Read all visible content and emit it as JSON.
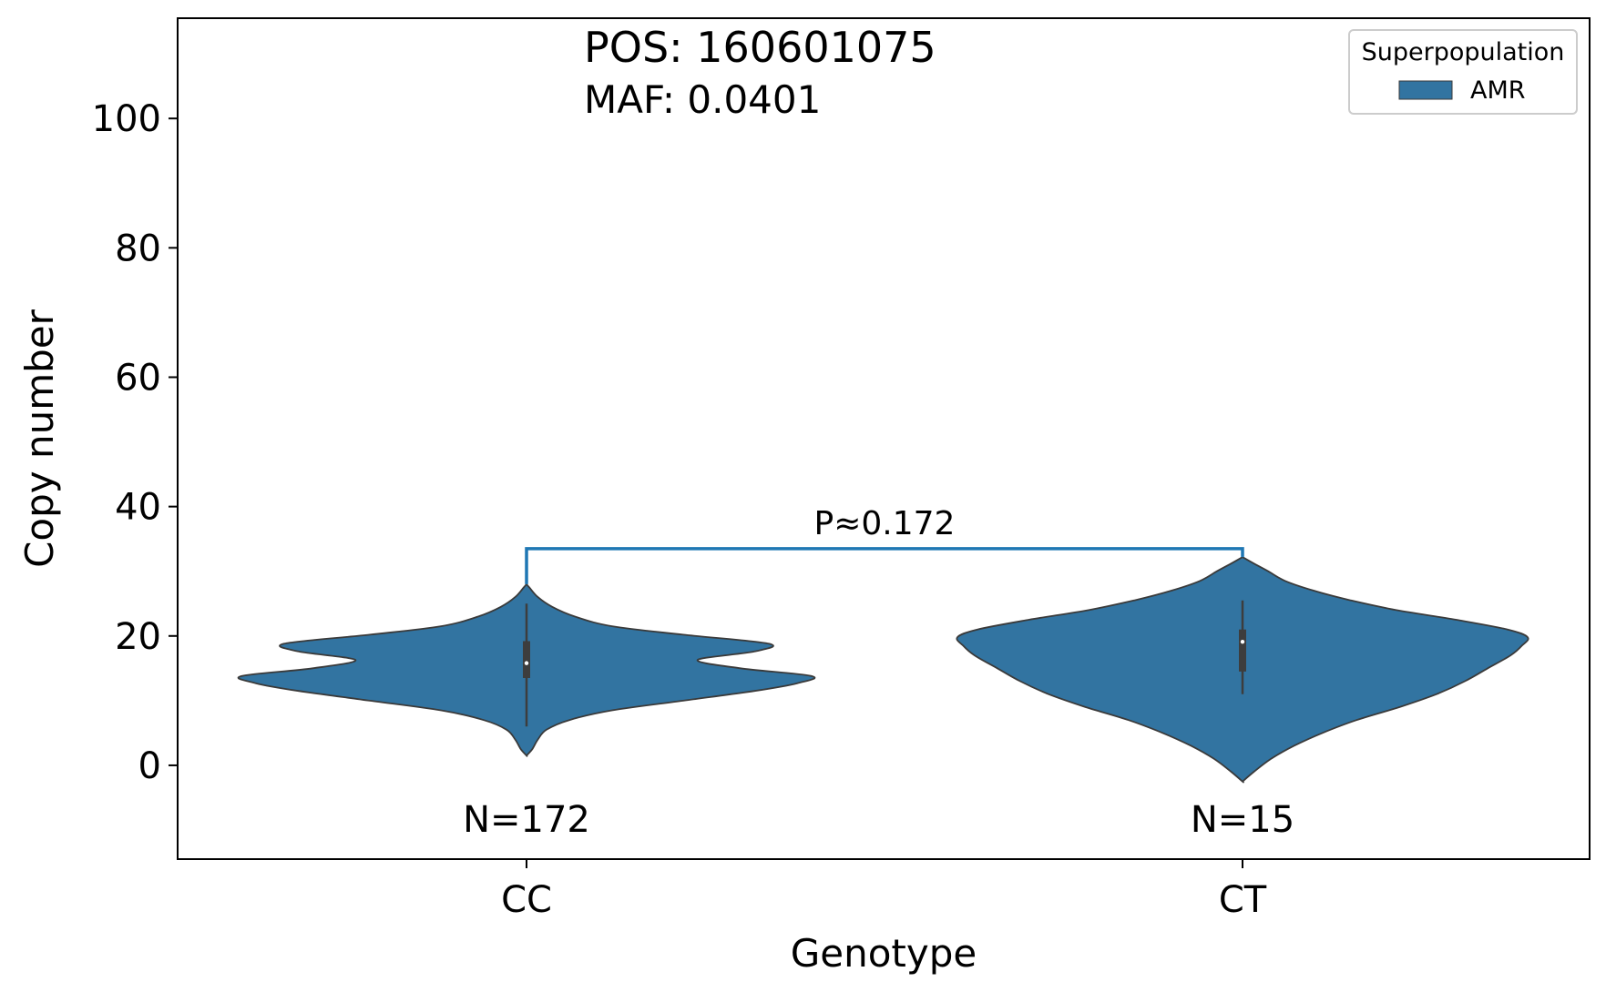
{
  "chart_data": {
    "type": "violin",
    "xlabel": "Genotype",
    "ylabel": "Copy number",
    "ylim": [
      -14.5,
      115.5
    ],
    "yticks": [
      0,
      20,
      40,
      60,
      80,
      100
    ],
    "categories": [
      "CC",
      "CT"
    ],
    "annotations": {
      "pos": "POS: 160601075",
      "maf": "MAF: 0.0401"
    },
    "legend": {
      "title": "Superpopulation",
      "placement": "top-right",
      "entries": [
        {
          "label": "AMR",
          "color": "#3274a1"
        }
      ]
    },
    "series_color": "#3274a1",
    "groups": [
      {
        "category": "CC",
        "n_label": "N=172",
        "box": {
          "whisker_low": 6,
          "q1": 13.5,
          "median": 15.8,
          "q3": 19.2,
          "whisker_high": 25
        },
        "density": [
          [
            1.5,
            0.0
          ],
          [
            2.5,
            0.02
          ],
          [
            4,
            0.04
          ],
          [
            5.5,
            0.07
          ],
          [
            7,
            0.15
          ],
          [
            8.5,
            0.3
          ],
          [
            10,
            0.55
          ],
          [
            11.5,
            0.8
          ],
          [
            12.7,
            0.95
          ],
          [
            13.8,
            1.0
          ],
          [
            15,
            0.75
          ],
          [
            16.3,
            0.6
          ],
          [
            17.6,
            0.8
          ],
          [
            18.8,
            0.85
          ],
          [
            20.2,
            0.55
          ],
          [
            21.5,
            0.3
          ],
          [
            23,
            0.17
          ],
          [
            24.5,
            0.09
          ],
          [
            26,
            0.04
          ],
          [
            27.5,
            0.01
          ],
          [
            28,
            0.0
          ]
        ]
      },
      {
        "category": "CT",
        "n_label": "N=15",
        "box": {
          "whisker_low": 11,
          "q1": 14.5,
          "median": 19.1,
          "q3": 21,
          "whisker_high": 25.5
        },
        "density": [
          [
            -2.5,
            0.0
          ],
          [
            -1,
            0.04
          ],
          [
            1,
            0.1
          ],
          [
            3,
            0.18
          ],
          [
            5,
            0.28
          ],
          [
            7,
            0.4
          ],
          [
            9,
            0.55
          ],
          [
            11,
            0.68
          ],
          [
            13,
            0.78
          ],
          [
            15,
            0.86
          ],
          [
            17,
            0.94
          ],
          [
            18.5,
            0.98
          ],
          [
            19.8,
            1.0
          ],
          [
            21,
            0.93
          ],
          [
            22.5,
            0.75
          ],
          [
            24,
            0.54
          ],
          [
            25.5,
            0.38
          ],
          [
            27,
            0.25
          ],
          [
            28.5,
            0.15
          ],
          [
            30,
            0.09
          ],
          [
            31.2,
            0.04
          ],
          [
            32.2,
            0.0
          ]
        ]
      }
    ],
    "significance": {
      "from": "CC",
      "to": "CT",
      "y": 33.5,
      "label": "P≈0.172",
      "color": "#1f77b4"
    }
  }
}
